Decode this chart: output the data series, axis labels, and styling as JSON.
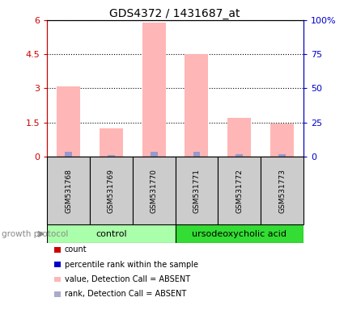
{
  "title": "GDS4372 / 1431687_at",
  "samples": [
    "GSM531768",
    "GSM531769",
    "GSM531770",
    "GSM531771",
    "GSM531772",
    "GSM531773"
  ],
  "pink_bar_heights": [
    3.1,
    1.25,
    5.9,
    4.5,
    1.7,
    1.45
  ],
  "blue_bar_heights": [
    0.22,
    0.07,
    0.22,
    0.22,
    0.1,
    0.1
  ],
  "pink_color": "#FFB6B6",
  "blue_color": "#9999CC",
  "left_yticks": [
    0,
    1.5,
    3.0,
    4.5,
    6.0
  ],
  "left_ytick_labels": [
    "0",
    "1.5",
    "3",
    "4.5",
    "6"
  ],
  "right_yticks": [
    0,
    25,
    50,
    75,
    100
  ],
  "right_ytick_labels": [
    "0",
    "25",
    "50",
    "75",
    "100%"
  ],
  "ylim": [
    0,
    6.0
  ],
  "right_ylim": [
    0,
    100
  ],
  "control_color": "#AAFFAA",
  "urso_color": "#33DD33",
  "sample_box_color": "#CCCCCC",
  "background_color": "#FFFFFF",
  "plot_bg_color": "#FFFFFF",
  "left_axis_color": "#CC0000",
  "right_axis_color": "#0000CC",
  "title_fontsize": 10,
  "legend_items": [
    {
      "label": "count",
      "color": "#CC0000"
    },
    {
      "label": "percentile rank within the sample",
      "color": "#0000CC"
    },
    {
      "label": "value, Detection Call = ABSENT",
      "color": "#FFB6B6"
    },
    {
      "label": "rank, Detection Call = ABSENT",
      "color": "#AAAACC"
    }
  ],
  "growth_protocol_label": "growth protocol"
}
